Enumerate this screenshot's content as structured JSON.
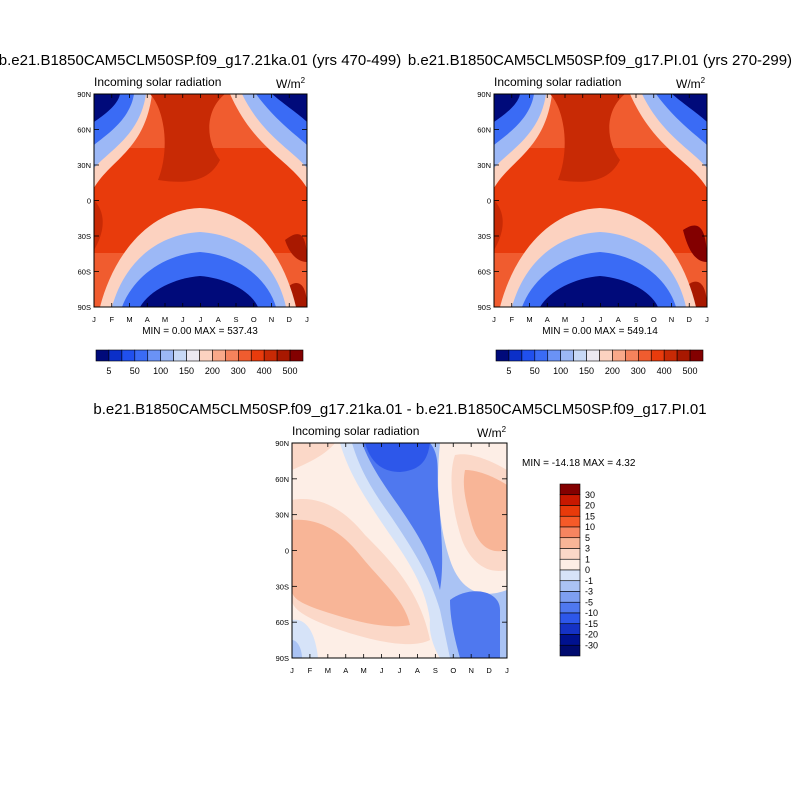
{
  "chart_data": [
    {
      "type": "heatmap",
      "title": "b.e21.B1850CAM5CLM50SP.f09_g17.21ka.01 (yrs 470-499)",
      "subtitle": "Incoming solar radiation",
      "units": "W/m",
      "units_sup": "2",
      "xticks": [
        "J",
        "F",
        "M",
        "A",
        "M",
        "J",
        "J",
        "A",
        "S",
        "O",
        "N",
        "D",
        "J"
      ],
      "yticks": [
        "90N",
        "60N",
        "30N",
        "0",
        "30S",
        "60S",
        "90S"
      ],
      "stats": "MIN =   0.00 MAX = 537.43",
      "min": 0.0,
      "max": 537.43,
      "colorbar_labels": [
        "5",
        "50",
        "100",
        "150",
        "200",
        "300",
        "400",
        "500"
      ]
    },
    {
      "type": "heatmap",
      "title": "b.e21.B1850CAM5CLM50SP.f09_g17.PI.01 (yrs 270-299)",
      "subtitle": "Incoming solar radiation",
      "units": "W/m",
      "units_sup": "2",
      "xticks": [
        "J",
        "F",
        "M",
        "A",
        "M",
        "J",
        "J",
        "A",
        "S",
        "O",
        "N",
        "D",
        "J"
      ],
      "yticks": [
        "90N",
        "60N",
        "30N",
        "0",
        "30S",
        "60S",
        "90S"
      ],
      "stats": "MIN =   0.00 MAX = 549.14",
      "min": 0.0,
      "max": 549.14,
      "colorbar_labels": [
        "5",
        "50",
        "100",
        "150",
        "200",
        "300",
        "400",
        "500"
      ]
    },
    {
      "type": "heatmap",
      "title": "b.e21.B1850CAM5CLM50SP.f09_g17.21ka.01 - b.e21.B1850CAM5CLM50SP.f09_g17.PI.01",
      "subtitle": "Incoming solar radiation",
      "units": "W/m",
      "units_sup": "2",
      "xticks": [
        "J",
        "F",
        "M",
        "A",
        "M",
        "J",
        "J",
        "A",
        "S",
        "O",
        "N",
        "D",
        "J"
      ],
      "yticks": [
        "90N",
        "60N",
        "30N",
        "0",
        "30S",
        "60S",
        "90S"
      ],
      "stats": "MIN = -14.18 MAX =   4.32",
      "min": -14.18,
      "max": 4.32,
      "colorbar_labels": [
        "30",
        "20",
        "15",
        "10",
        "5",
        "3",
        "1",
        "0",
        "-1",
        "-3",
        "-5",
        "-10",
        "-15",
        "-20",
        "-30"
      ]
    }
  ],
  "colors": {
    "abs_scale": [
      "#000a7a",
      "#0b2fc8",
      "#2050ee",
      "#3a6bf5",
      "#6a92f6",
      "#9cb8f6",
      "#c8d9f6",
      "#ece8f0",
      "#fcd2c0",
      "#f9a989",
      "#f5835c",
      "#f05c2f",
      "#e83b0c",
      "#c82a05",
      "#a81800",
      "#830000"
    ],
    "diff_scale": [
      "#830000",
      "#c81800",
      "#e83a0a",
      "#f55a28",
      "#f78560",
      "#f8b597",
      "#fbd8c8",
      "#fdeee6",
      "#d6e3f8",
      "#aac3f4",
      "#7e9ff1",
      "#4f78ef",
      "#2d57ea",
      "#1532c5",
      "#00118f",
      "#000a6e"
    ]
  }
}
